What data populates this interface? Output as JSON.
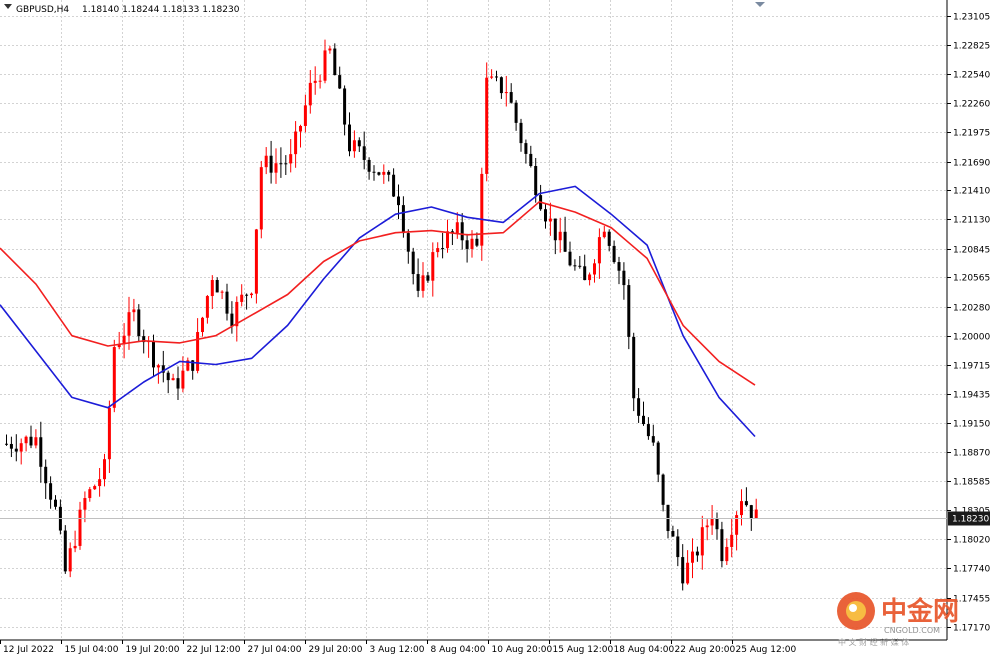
{
  "header": {
    "symbol": "GBPUSD,H4",
    "ohlc": "1.18140 1.18244 1.18133 1.18230"
  },
  "watermark": {
    "brand_cn": "中金网",
    "site": "CNGOLD.COM",
    "tagline": "中 文 财 经 新 媒 体"
  },
  "colors": {
    "bull": "#ff0000",
    "bear": "#000000",
    "ma_blue": "#1c1cd8",
    "ma_red": "#f22020",
    "grid": "#d3d3d3",
    "price_tag_bg": "#1a1a1a"
  },
  "chart_data": {
    "type": "candlestick",
    "title": "GBPUSD,H4",
    "current_price": "1.18230",
    "ylim": [
      1.1743,
      1.232
    ],
    "y_ticks": [
      "1.23105",
      "1.22825",
      "1.22540",
      "1.22260",
      "1.21975",
      "1.21690",
      "1.21410",
      "1.21130",
      "1.20845",
      "1.20565",
      "1.20280",
      "1.20000",
      "1.19715",
      "1.19435",
      "1.19150",
      "1.18870",
      "1.18585",
      "1.18305",
      "1.18020",
      "1.17740",
      "1.17455",
      "1.17170"
    ],
    "x_labels": [
      "12 Jul 2022",
      "15 Jul 04:00",
      "19 Jul 20:00",
      "22 Jul 12:00",
      "27 Jul 04:00",
      "29 Jul 20:00",
      "3 Aug 12:00",
      "8 Aug 04:00",
      "10 Aug 20:00",
      "15 Aug 12:00",
      "18 Aug 04:00",
      "22 Aug 20:00",
      "25 Aug 12:00"
    ],
    "ma_series": [
      {
        "color": "blue",
        "values": [
          1.203,
          1.1985,
          1.194,
          1.193,
          1.1955,
          1.1975,
          1.1972,
          1.1978,
          1.201,
          1.2055,
          1.2095,
          1.2118,
          1.2125,
          1.2115,
          1.211,
          1.2138,
          1.2145,
          1.2118,
          1.2088,
          1.2,
          1.194,
          1.1902
        ]
      },
      {
        "color": "red",
        "values": [
          1.2085,
          1.205,
          1.2,
          1.199,
          1.1995,
          1.1993,
          1.2,
          1.202,
          1.204,
          1.2072,
          1.2092,
          1.21,
          1.2102,
          1.2098,
          1.21,
          1.213,
          1.212,
          1.2105,
          1.2075,
          1.201,
          1.1975,
          1.1952
        ]
      }
    ]
  }
}
